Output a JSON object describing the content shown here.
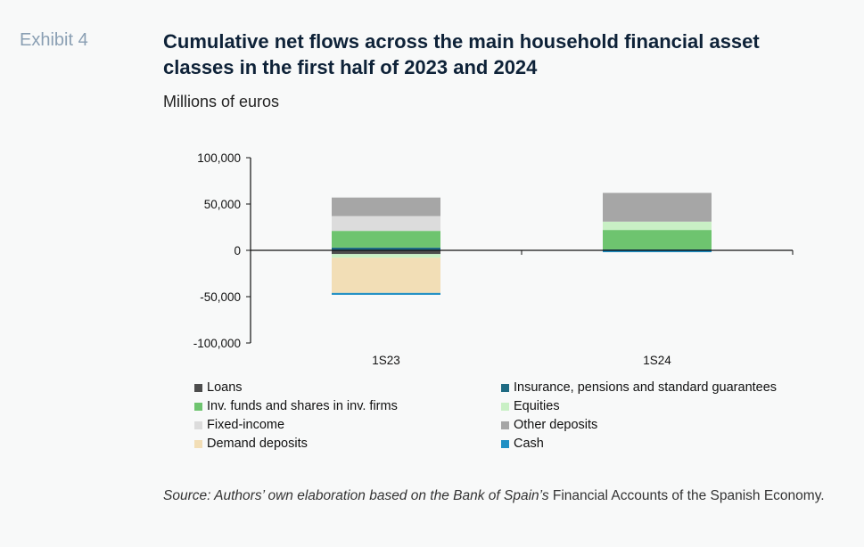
{
  "header": {
    "exhibit": "Exhibit 4",
    "title": "Cumulative net flows across the main household financial asset classes in the first half of 2023 and 2024",
    "subtitle": "Millions of euros"
  },
  "source": {
    "italic": "Source: Authors’ own elaboration based on the Bank of Spain’s",
    "plain": " Financial Accounts of the Spanish Economy."
  },
  "chart_data": {
    "type": "bar",
    "stacked": true,
    "categories": [
      "1S23",
      "1S24"
    ],
    "ylim": [
      -100000,
      100000
    ],
    "yticks": [
      100000,
      50000,
      0,
      -50000,
      -100000
    ],
    "ytick_labels": [
      "100,000",
      "50,000",
      "0",
      "-50,000",
      "-100,000"
    ],
    "legend_position": "bottom",
    "series": [
      {
        "name": "Loans",
        "color": "#4d4d4d",
        "values": [
          -4000,
          0
        ]
      },
      {
        "name": "Insurance, pensions and standard guarantees",
        "color": "#1f6b83",
        "values": [
          3000,
          1000
        ]
      },
      {
        "name": "Inv. funds and shares in inv. firms",
        "color": "#6ec46f",
        "values": [
          18000,
          21000
        ]
      },
      {
        "name": "Equities",
        "color": "#c9f0c5",
        "values": [
          -4000,
          9000
        ]
      },
      {
        "name": "Fixed-income",
        "color": "#dcdcdc",
        "values": [
          16000,
          0
        ]
      },
      {
        "name": "Other deposits",
        "color": "#a6a6a6",
        "values": [
          20000,
          31000
        ]
      },
      {
        "name": "Demand deposits",
        "color": "#f2deb6",
        "values": [
          -38000,
          0
        ]
      },
      {
        "name": "Cash",
        "color": "#1f8fc4",
        "values": [
          -2000,
          -2000
        ]
      }
    ]
  }
}
